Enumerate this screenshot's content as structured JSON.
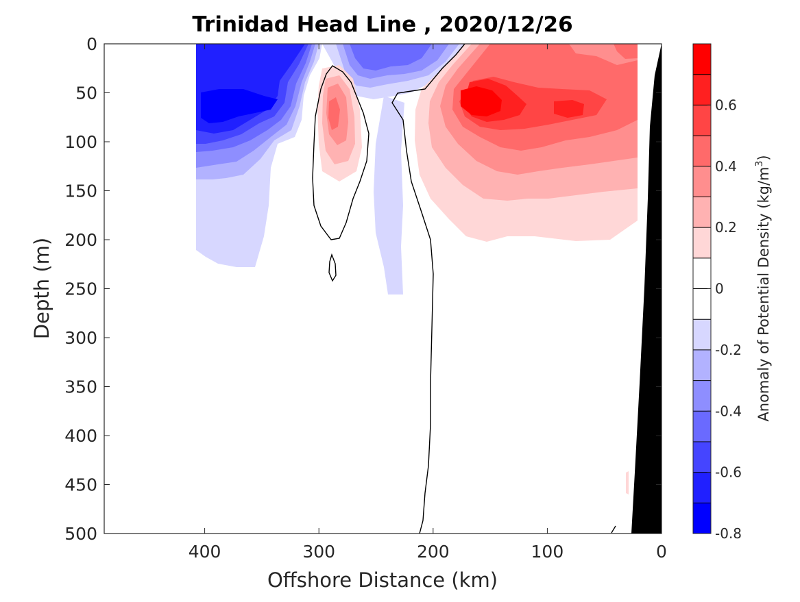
{
  "chart_data": {
    "type": "heatmap",
    "title": "Trinidad Head Line , 2020/12/26",
    "xlabel": "Offshore Distance (km)",
    "ylabel": "Depth (m)",
    "xlim": [
      488,
      0
    ],
    "ylim": [
      0,
      500
    ],
    "y_reversed": true,
    "x_reversed": true,
    "x_ticks": [
      "400",
      "300",
      "200",
      "100",
      "0"
    ],
    "x_tick_values": [
      400,
      300,
      200,
      100,
      0
    ],
    "y_ticks": [
      "0",
      "50",
      "100",
      "150",
      "200",
      "250",
      "300",
      "350",
      "400",
      "450",
      "500"
    ],
    "y_tick_values": [
      0,
      50,
      100,
      150,
      200,
      250,
      300,
      350,
      400,
      450,
      500
    ],
    "colorbar": {
      "label": "Anomaly of Potential Density (kg/m",
      "label_superscript": "3",
      "label_close": ")",
      "range": [
        -0.8,
        0.8
      ],
      "levels": [
        -0.8,
        -0.7,
        -0.6,
        -0.5,
        -0.4,
        -0.3,
        -0.2,
        -0.1,
        0,
        0.1,
        0.2,
        0.3,
        0.4,
        0.5,
        0.6,
        0.7,
        0.8
      ],
      "tick_labels": [
        "0.6",
        "0.4",
        "0.2",
        "0",
        "-0.2",
        "-0.4",
        "-0.6",
        "-0.8"
      ],
      "tick_values": [
        0.6,
        0.4,
        0.2,
        0,
        -0.2,
        -0.4,
        -0.6,
        -0.8
      ],
      "colors": [
        "#0000ff",
        "#2020ff",
        "#4545ff",
        "#6a6aff",
        "#8e8eff",
        "#b2b2ff",
        "#d7d7ff",
        "#ffffff",
        "#ffffff",
        "#ffd7d7",
        "#ffb2b2",
        "#ff8e8e",
        "#ff6a6a",
        "#ff4545",
        "#ff2020",
        "#ff0000"
      ]
    },
    "features": [
      {
        "feature": "negative anomaly core",
        "x": 370,
        "y": 60,
        "value": -0.7
      },
      {
        "feature": "negative anomaly near surface",
        "x": 235,
        "y": 20,
        "value": -0.4
      },
      {
        "feature": "positive anomaly eddy",
        "x": 285,
        "y": 80,
        "value": 0.4
      },
      {
        "feature": "positive anomaly core",
        "x": 160,
        "y": 60,
        "value": 0.7
      },
      {
        "feature": "positive anomaly secondary",
        "x": 85,
        "y": 65,
        "value": 0.6
      }
    ],
    "bathymetry": {
      "color": "#000000",
      "surface_x": 0,
      "bottom_x": 25
    },
    "grid": false
  }
}
